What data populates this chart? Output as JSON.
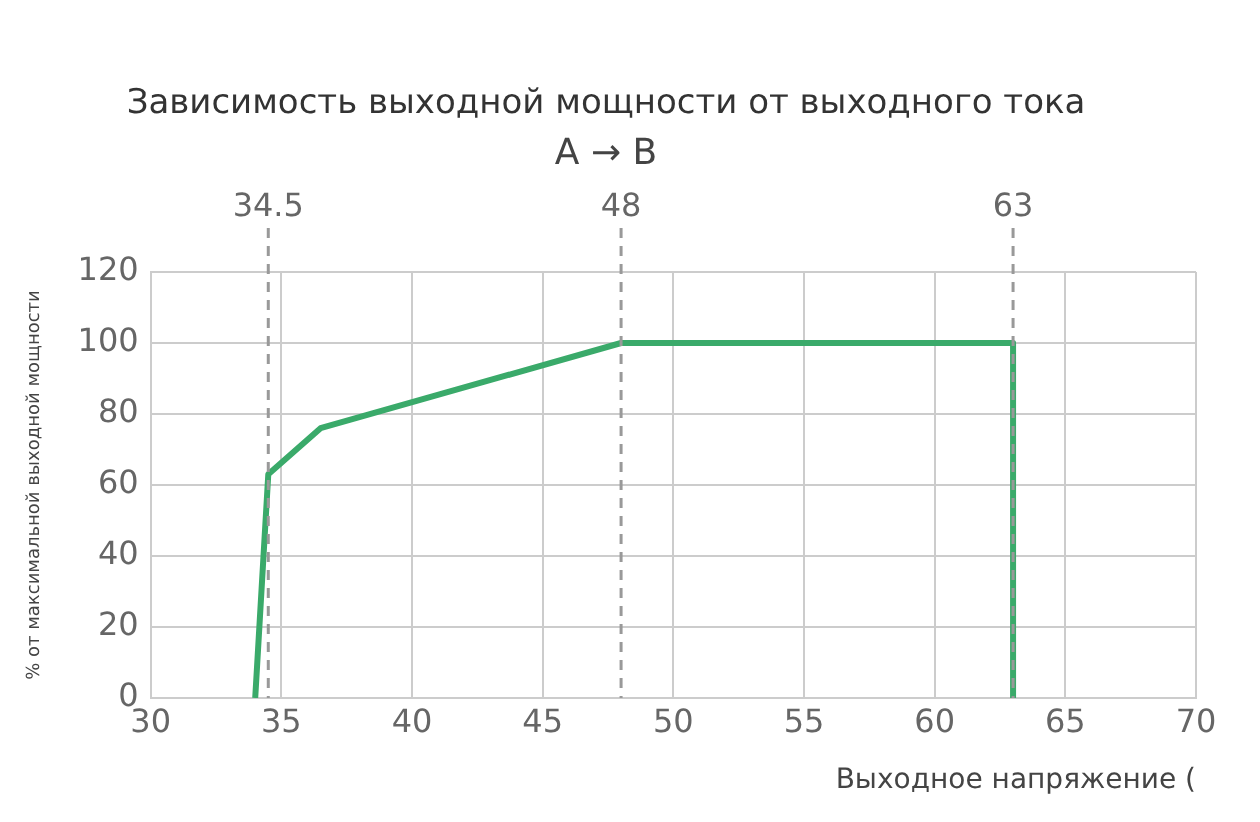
{
  "chart_data": {
    "type": "line",
    "title": "Зависимость выходной мощности от выходного тока",
    "subtitle": "A → B",
    "xlabel": "Выходное напряжение (",
    "ylabel": "% от максимальной выходной мощности",
    "x": [
      34,
      34.5,
      36.5,
      48,
      63,
      63
    ],
    "series": [
      {
        "color": "#3aaa6a",
        "values": [
          0,
          63,
          76,
          100,
          100,
          0
        ]
      }
    ],
    "xlim": [
      30,
      70
    ],
    "xticks": [
      30,
      35,
      40,
      45,
      50,
      55,
      60,
      65,
      70
    ],
    "ylim": [
      0,
      120
    ],
    "yticks": [
      0,
      20,
      40,
      60,
      80,
      100,
      120
    ],
    "grid": true,
    "marker": "none",
    "ref_lines": [
      {
        "axis": "x",
        "value": 34.5,
        "label": "34.5",
        "color": "#999999",
        "line_style": "dashed"
      },
      {
        "axis": "x",
        "value": 48,
        "label": "48",
        "color": "#999999",
        "line_style": "dashed"
      },
      {
        "axis": "x",
        "value": 63,
        "label": "63",
        "color": "#999999",
        "line_style": "dashed"
      }
    ]
  }
}
